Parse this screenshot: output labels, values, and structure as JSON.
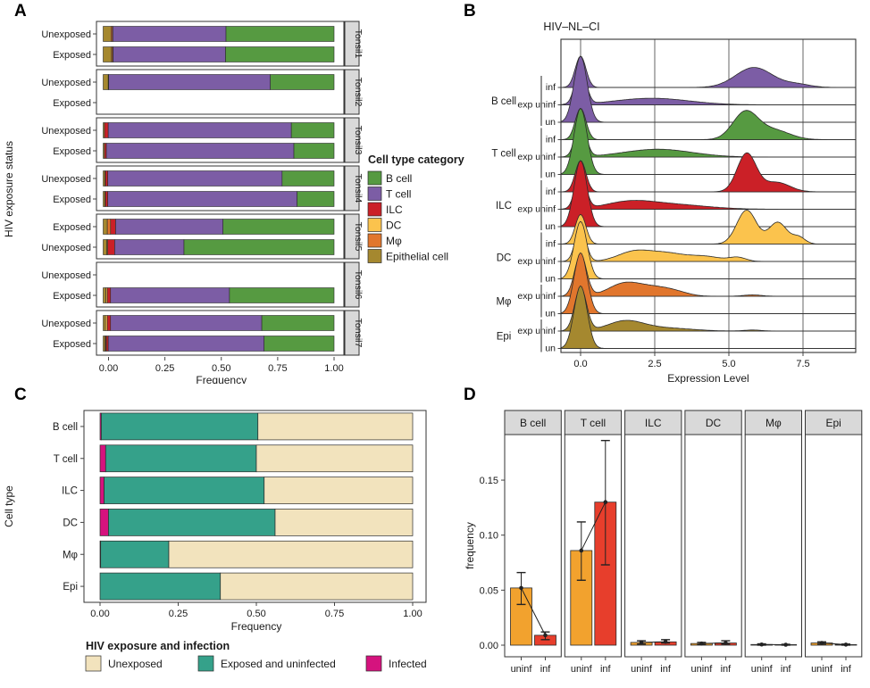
{
  "chart_data": [
    {
      "panel_label": "A",
      "type": "bar",
      "variant": "horizontal-stacked-faceted",
      "xlabel": "Frequency",
      "ylabel": "HIV exposure status",
      "x_tick_labels": [
        "0.00",
        "0.25",
        "0.50",
        "0.75",
        "1.00"
      ],
      "x_tick_values": [
        0,
        0.25,
        0.5,
        0.75,
        1.0
      ],
      "xlim": [
        0,
        1
      ],
      "grid": false,
      "legend_position": "right",
      "legend_title": "Cell type category",
      "legend_items": [
        {
          "label": "B cell",
          "color": "#569a41"
        },
        {
          "label": "T cell",
          "color": "#7c5da5"
        },
        {
          "label": "ILC",
          "color": "#cb2027"
        },
        {
          "label": "DC",
          "color": "#fbc34d"
        },
        {
          "label": "Mφ",
          "color": "#e1762d"
        },
        {
          "label": "Epithelial cell",
          "color": "#a5882f"
        }
      ],
      "stack_order": [
        "Epithelial cell",
        "Mφ",
        "DC",
        "ILC",
        "T cell",
        "B cell"
      ],
      "stack_colors": [
        "#a5882f",
        "#e1762d",
        "#fbc34d",
        "#cb2027",
        "#7c5da5",
        "#569a41"
      ],
      "facets": [
        {
          "label": "Tonsil1",
          "rows": [
            {
              "label": "Unexposed",
              "segments": [
                0.034,
                0.006,
                0.0,
                0.002,
                0.49,
                0.468
              ]
            },
            {
              "label": "Exposed",
              "segments": [
                0.036,
                0.005,
                0.0,
                0.002,
                0.487,
                0.47
              ]
            }
          ]
        },
        {
          "label": "Tonsil2",
          "rows": [
            {
              "label": "Unexposed",
              "segments": [
                0.022,
                0.0,
                0.0,
                0.002,
                0.7,
                0.276
              ]
            },
            {
              "label": "Exposed",
              "segments": null
            }
          ]
        },
        {
          "label": "Tonsil3",
          "rows": [
            {
              "label": "Unexposed",
              "segments": [
                0.006,
                0.0,
                0.0,
                0.016,
                0.793,
                0.185
              ]
            },
            {
              "label": "Exposed",
              "segments": [
                0.006,
                0.0,
                0.0,
                0.008,
                0.812,
                0.174
              ]
            }
          ]
        },
        {
          "label": "Tonsil4",
          "rows": [
            {
              "label": "Unexposed",
              "segments": [
                0.008,
                0.0,
                0.002,
                0.01,
                0.755,
                0.225
              ]
            },
            {
              "label": "Exposed",
              "segments": [
                0.008,
                0.0,
                0.002,
                0.01,
                0.82,
                0.16
              ]
            }
          ]
        },
        {
          "label": "Tonsil5",
          "rows": [
            {
              "label": "Exposed",
              "segments": [
                0.018,
                0.014,
                0.0,
                0.022,
                0.465,
                0.481
              ]
            },
            {
              "label": "Unexposed",
              "segments": [
                0.016,
                0.004,
                0.0,
                0.03,
                0.3,
                0.65
              ]
            }
          ]
        },
        {
          "label": "Tonsil6",
          "rows": [
            {
              "label": "Unexposed",
              "segments": null
            },
            {
              "label": "Exposed",
              "segments": [
                0.012,
                0.0,
                0.006,
                0.014,
                0.515,
                0.453
              ]
            }
          ]
        },
        {
          "label": "Tonsil7",
          "rows": [
            {
              "label": "Unexposed",
              "segments": [
                0.01,
                0.0,
                0.008,
                0.014,
                0.655,
                0.313
              ]
            },
            {
              "label": "Exposed",
              "segments": [
                0.008,
                0.004,
                0.002,
                0.008,
                0.675,
                0.303
              ]
            }
          ]
        }
      ]
    },
    {
      "panel_label": "B",
      "type": "area",
      "variant": "ridgeline",
      "title": "HIV–NL–CI",
      "xlabel": "Expression Level",
      "x_tick_labels": [
        "0.0",
        "2.5",
        "5.0",
        "7.5"
      ],
      "x_tick_values": [
        0,
        2.5,
        5.0,
        7.5
      ],
      "xlim": [
        -0.65,
        9.3
      ],
      "grid": true,
      "row_labels_note": "densities parameterized as gaussian components [center, sigma, amplitude-in-row-heights]",
      "groups": [
        {
          "label": "B cell",
          "color": "#7c5da5",
          "rows": [
            {
              "label": "inf",
              "peaks": [
                [
                  0,
                  0.18,
                  1.8
                ],
                [
                  5.85,
                  0.62,
                  1.15
                ],
                [
                  7.3,
                  0.45,
                  0.18
                ]
              ]
            },
            {
              "label": "exp uninf",
              "peaks": [
                [
                  0,
                  0.18,
                  2.2
                ],
                [
                  2.4,
                  1.25,
                  0.38
                ]
              ]
            },
            {
              "label": "un",
              "peaks": [
                [
                  0,
                  0.22,
                  3.8
                ]
              ]
            }
          ]
        },
        {
          "label": "T cell",
          "color": "#569a41",
          "rows": [
            {
              "label": "inf",
              "peaks": [
                [
                  0,
                  0.18,
                  1.8
                ],
                [
                  5.55,
                  0.42,
                  1.55
                ],
                [
                  6.5,
                  0.55,
                  0.55
                ]
              ]
            },
            {
              "label": "exp uninf",
              "peaks": [
                [
                  0,
                  0.18,
                  2.1
                ],
                [
                  2.6,
                  1.15,
                  0.45
                ]
              ]
            },
            {
              "label": "un",
              "peaks": [
                [
                  0,
                  0.22,
                  3.8
                ]
              ]
            }
          ]
        },
        {
          "label": "ILC",
          "color": "#cb2027",
          "rows": [
            {
              "label": "inf",
              "peaks": [
                [
                  0,
                  0.18,
                  1.8
                ],
                [
                  5.6,
                  0.32,
                  2.2
                ],
                [
                  6.6,
                  0.45,
                  0.55
                ]
              ]
            },
            {
              "label": "exp uninf",
              "peaks": [
                [
                  0,
                  0.18,
                  2.1
                ],
                [
                  1.6,
                  0.8,
                  0.35
                ],
                [
                  3.0,
                  1.2,
                  0.28
                ]
              ]
            },
            {
              "label": "un",
              "peaks": [
                [
                  0,
                  0.22,
                  3.8
                ]
              ]
            }
          ]
        },
        {
          "label": "DC",
          "color": "#fbc34d",
          "rows": [
            {
              "label": "inf",
              "peaks": [
                [
                  0,
                  0.18,
                  1.7
                ],
                [
                  5.6,
                  0.33,
                  1.95
                ],
                [
                  6.65,
                  0.3,
                  1.25
                ],
                [
                  7.35,
                  0.22,
                  0.4
                ]
              ]
            },
            {
              "label": "exp uninf",
              "peaks": [
                [
                  0,
                  0.18,
                  2.0
                ],
                [
                  1.8,
                  0.55,
                  0.55
                ],
                [
                  2.9,
                  0.6,
                  0.45
                ],
                [
                  4.2,
                  0.55,
                  0.28
                ],
                [
                  5.3,
                  0.28,
                  0.22
                ]
              ]
            },
            {
              "label": "un",
              "peaks": [
                [
                  0,
                  0.22,
                  3.3
                ]
              ]
            }
          ]
        },
        {
          "label": "Mφ",
          "color": "#e1762d",
          "rows": [
            {
              "label": "exp uninf",
              "peaks": [
                [
                  0,
                  0.2,
                  2.4
                ],
                [
                  1.5,
                  0.55,
                  0.75
                ],
                [
                  2.5,
                  0.5,
                  0.4
                ],
                [
                  3.2,
                  0.45,
                  0.22
                ],
                [
                  5.8,
                  0.3,
                  0.08
                ]
              ]
            },
            {
              "label": "un",
              "peaks": [
                [
                  0,
                  0.22,
                  3.5
                ]
              ]
            }
          ]
        },
        {
          "label": "Epi",
          "color": "#a5882f",
          "rows": [
            {
              "label": "exp uninf",
              "peaks": [
                [
                  0,
                  0.2,
                  2.5
                ],
                [
                  1.5,
                  0.6,
                  0.55
                ],
                [
                  2.8,
                  0.9,
                  0.18
                ],
                [
                  5.8,
                  0.3,
                  0.06
                ]
              ]
            },
            {
              "label": "un",
              "peaks": [
                [
                  0,
                  0.22,
                  3.6
                ]
              ]
            }
          ]
        }
      ]
    },
    {
      "panel_label": "C",
      "type": "bar",
      "variant": "horizontal-stacked",
      "xlabel": "Frequency",
      "ylabel": "Cell type",
      "x_tick_labels": [
        "0.00",
        "0.25",
        "0.50",
        "0.75",
        "1.00"
      ],
      "x_tick_values": [
        0,
        0.25,
        0.5,
        0.75,
        1.0
      ],
      "xlim": [
        0,
        1
      ],
      "grid": false,
      "legend_position": "bottom",
      "legend_title": "HIV exposure and infection",
      "legend_items": [
        {
          "label": "Unexposed",
          "color": "#f2e3bd"
        },
        {
          "label": "Exposed and uninfected",
          "color": "#35a18a"
        },
        {
          "label": "Infected",
          "color": "#d5137e"
        }
      ],
      "stack_order": [
        "Infected",
        "Exposed and uninfected",
        "Unexposed"
      ],
      "stack_colors": [
        "#d5137e",
        "#35a18a",
        "#f2e3bd"
      ],
      "categories": [
        "B cell",
        "T cell",
        "ILC",
        "DC",
        "Mφ",
        "Epi"
      ],
      "rows": [
        {
          "label": "B cell",
          "segments": [
            0.004,
            0.501,
            0.495
          ]
        },
        {
          "label": "T cell",
          "segments": [
            0.018,
            0.482,
            0.5
          ]
        },
        {
          "label": "ILC",
          "segments": [
            0.013,
            0.512,
            0.475
          ]
        },
        {
          "label": "DC",
          "segments": [
            0.027,
            0.533,
            0.44
          ]
        },
        {
          "label": "Mφ",
          "segments": [
            0.002,
            0.218,
            0.78
          ]
        },
        {
          "label": "Epi",
          "segments": [
            0.0,
            0.385,
            0.615
          ]
        }
      ]
    },
    {
      "panel_label": "D",
      "type": "bar",
      "variant": "vertical-bars-with-errorbars-faceted",
      "ylabel": "frequency",
      "y_tick_labels": [
        "0.00",
        "0.05",
        "0.10",
        "0.15"
      ],
      "y_tick_values": [
        0,
        0.05,
        0.1,
        0.15
      ],
      "ylim": [
        0,
        0.19
      ],
      "bar_colors": {
        "uninf": "#f2a22e",
        "inf": "#e73e2c"
      },
      "x_categories": [
        "uninf",
        "inf"
      ],
      "facets": [
        {
          "label": "B cell",
          "bars": [
            {
              "label": "uninf",
              "value": 0.052,
              "lo": 0.037,
              "hi": 0.066
            },
            {
              "label": "inf",
              "value": 0.009,
              "lo": 0.005,
              "hi": 0.012
            }
          ]
        },
        {
          "label": "T cell",
          "bars": [
            {
              "label": "uninf",
              "value": 0.086,
              "lo": 0.059,
              "hi": 0.112
            },
            {
              "label": "inf",
              "value": 0.13,
              "lo": 0.073,
              "hi": 0.186
            }
          ]
        },
        {
          "label": "ILC",
          "bars": [
            {
              "label": "uninf",
              "value": 0.0025,
              "lo": 0.001,
              "hi": 0.004
            },
            {
              "label": "inf",
              "value": 0.003,
              "lo": 0.002,
              "hi": 0.005
            }
          ]
        },
        {
          "label": "DC",
          "bars": [
            {
              "label": "uninf",
              "value": 0.0015,
              "lo": 0.0005,
              "hi": 0.0025
            },
            {
              "label": "inf",
              "value": 0.002,
              "lo": 0.001,
              "hi": 0.004
            }
          ]
        },
        {
          "label": "Mφ",
          "bars": [
            {
              "label": "uninf",
              "value": 0.0006,
              "lo": 0.0,
              "hi": 0.0012
            },
            {
              "label": "inf",
              "value": 0.0004,
              "lo": 0.0,
              "hi": 0.0008
            }
          ]
        },
        {
          "label": "Epi",
          "bars": [
            {
              "label": "uninf",
              "value": 0.002,
              "lo": 0.001,
              "hi": 0.003
            },
            {
              "label": "inf",
              "value": 0.0005,
              "lo": 0.0,
              "hi": 0.001
            }
          ]
        }
      ]
    }
  ],
  "style_colors": {
    "strip_fill": "#d9d9d9",
    "panel_border": "#333333",
    "grid_line": "#555555",
    "outline": "#2b2b2b",
    "text": "#1a1a1a"
  }
}
